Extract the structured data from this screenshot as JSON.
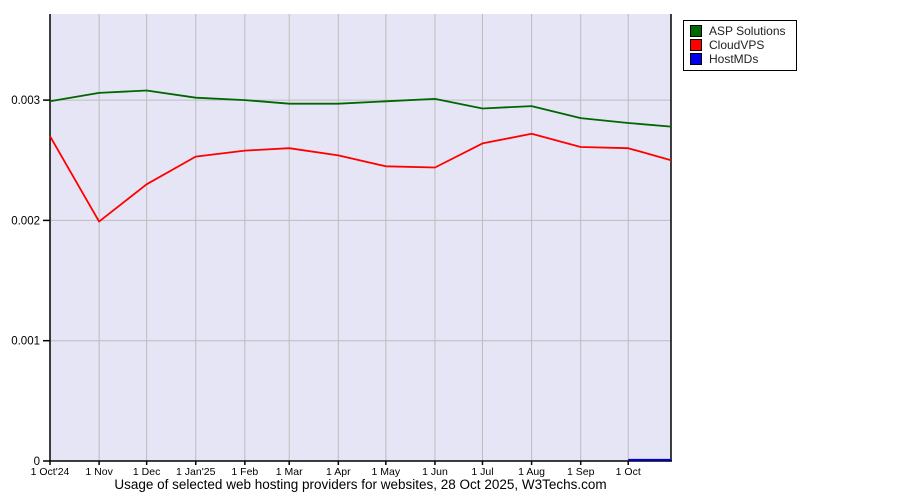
{
  "title": "Usage of selected web hosting providers for websites, 28 Oct 2025, W3Techs.com",
  "legend": {
    "position": "top-right",
    "items": [
      {
        "label": "ASP Solutions",
        "color": "#006600"
      },
      {
        "label": "CloudVPS",
        "color": "#ff0000"
      },
      {
        "label": "HostMDs",
        "color": "#0000ee"
      }
    ]
  },
  "chart_data": {
    "type": "line",
    "title": "Usage of selected web hosting providers for websites, 28 Oct 2025, W3Techs.com",
    "grid": true,
    "legend_position": "top-right",
    "plot_bg_color": "#e5e5f5",
    "grid_color": "#bdbdbd",
    "axis_color": "#000000",
    "x_axis": {
      "unit": "date",
      "start": "1 Oct 2024",
      "end": "28 Oct 2025",
      "total_days": 392,
      "tick_days": [
        0,
        31,
        61,
        92,
        123,
        151,
        182,
        212,
        243,
        273,
        304,
        335,
        365
      ],
      "tick_labels": [
        "1 Oct'24",
        "1 Nov",
        "1 Dec",
        "1 Jan'25",
        "1 Feb",
        "1 Mar",
        "1 Apr",
        "1 May",
        "1 Jun",
        "1 Jul",
        "1 Aug",
        "1 Sep",
        "1 Oct"
      ]
    },
    "y_axis": {
      "range": [
        0,
        0.003716
      ],
      "tick_values": [
        0,
        0.001,
        0.002,
        0.003
      ],
      "tick_labels": [
        "0",
        "0.001",
        "0.002",
        "0.003"
      ]
    },
    "series": [
      {
        "name": "ASP Solutions",
        "color": "#006600",
        "x_days": [
          0,
          31,
          61,
          92,
          123,
          151,
          182,
          212,
          243,
          273,
          304,
          335,
          365,
          392
        ],
        "values": [
          0.00299,
          0.00306,
          0.00308,
          0.00302,
          0.003,
          0.00297,
          0.00297,
          0.00299,
          0.00301,
          0.00293,
          0.00295,
          0.00285,
          0.00281,
          0.00278
        ]
      },
      {
        "name": "CloudVPS",
        "color": "#ff0000",
        "x_days": [
          0,
          31,
          61,
          92,
          123,
          151,
          182,
          212,
          243,
          273,
          304,
          335,
          365,
          392
        ],
        "values": [
          0.0027,
          0.00199,
          0.0023,
          0.00253,
          0.00258,
          0.0026,
          0.00254,
          0.00245,
          0.00244,
          0.00264,
          0.00272,
          0.00261,
          0.0026,
          0.0025
        ]
      },
      {
        "name": "HostMDs",
        "color": "#0000dd",
        "x_days": [
          365,
          392
        ],
        "values": [
          1e-05,
          1e-05
        ]
      }
    ]
  }
}
